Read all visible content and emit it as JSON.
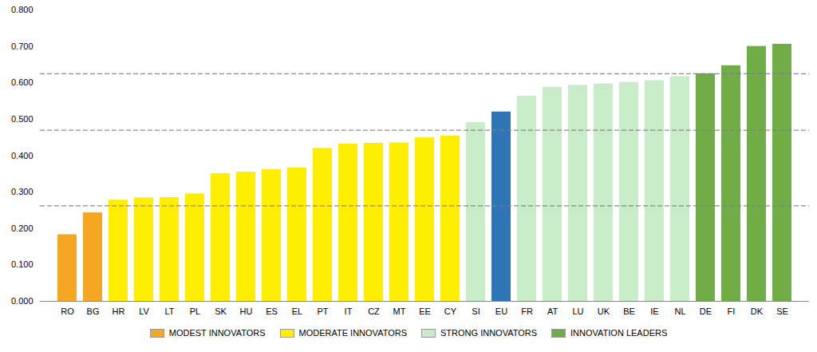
{
  "chart_data": {
    "type": "bar",
    "categories": [
      "RO",
      "BG",
      "HR",
      "LV",
      "LT",
      "PL",
      "SK",
      "HU",
      "ES",
      "EL",
      "PT",
      "IT",
      "CZ",
      "MT",
      "EE",
      "CY",
      "SI",
      "EU",
      "FR",
      "AT",
      "LU",
      "UK",
      "BE",
      "IE",
      "NL",
      "DE",
      "FI",
      "DK",
      "SE"
    ],
    "values": [
      0.183,
      0.243,
      0.278,
      0.284,
      0.285,
      0.295,
      0.351,
      0.355,
      0.362,
      0.366,
      0.42,
      0.432,
      0.434,
      0.435,
      0.449,
      0.454,
      0.491,
      0.52,
      0.563,
      0.588,
      0.593,
      0.597,
      0.601,
      0.606,
      0.617,
      0.625,
      0.647,
      0.7,
      0.706
    ],
    "colors": [
      "#F5A623",
      "#F5A623",
      "#FFEE00",
      "#FFEE00",
      "#FFEE00",
      "#FFEE00",
      "#FFEE00",
      "#FFEE00",
      "#FFEE00",
      "#FFEE00",
      "#FFEE00",
      "#FFEE00",
      "#FFEE00",
      "#FFEE00",
      "#FFEE00",
      "#FFEE00",
      "#C8ECC8",
      "#2E75B6",
      "#C8ECC8",
      "#C8ECC8",
      "#C8ECC8",
      "#C8ECC8",
      "#C8ECC8",
      "#C8ECC8",
      "#C8ECC8",
      "#70AD47",
      "#70AD47",
      "#70AD47",
      "#70AD47"
    ],
    "hlines": [
      0.262,
      0.47,
      0.625
    ],
    "hline_color": "#808080",
    "ylim": [
      0.0,
      0.8
    ],
    "yticks": [
      {
        "value": 0.0,
        "label": "0.000"
      },
      {
        "value": 0.1,
        "label": "0.100"
      },
      {
        "value": 0.2,
        "label": "0.200"
      },
      {
        "value": 0.3,
        "label": "0.300"
      },
      {
        "value": 0.4,
        "label": "0.400"
      },
      {
        "value": 0.5,
        "label": "0.500"
      },
      {
        "value": 0.6,
        "label": "0.600"
      },
      {
        "value": 0.7,
        "label": "0.700"
      },
      {
        "value": 0.8,
        "label": "0.800"
      }
    ],
    "grid": false,
    "legend": "bottom",
    "legend_entries": [
      {
        "label": "MODEST INNOVATORS",
        "color": "#F5A623"
      },
      {
        "label": "MODERATE INNOVATORS",
        "color": "#FFEE00"
      },
      {
        "label": "STRONG INNOVATORS",
        "color": "#C8ECC8"
      },
      {
        "label": "INNOVATION LEADERS",
        "color": "#70AD47"
      }
    ]
  }
}
